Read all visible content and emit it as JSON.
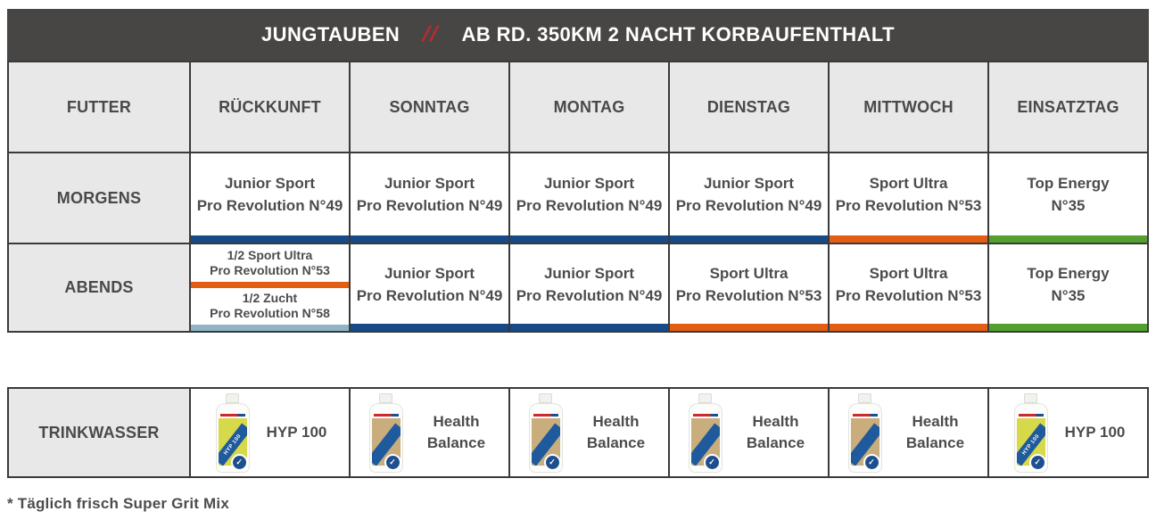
{
  "title_bar": {
    "left_label": "JUNGTAUBEN",
    "separator": "//",
    "right_label": "AB RD. 350KM 2 NACHT KORBAUFENTHALT",
    "background": "#474645",
    "separator_color": "#c1272d"
  },
  "colors": {
    "navy": "#164a88",
    "orange": "#e35d12",
    "green": "#53a02f",
    "steel_blue": "#8fb4c6",
    "header_gray": "#e9e8e8",
    "border_dark": "#3a3a3a"
  },
  "feed_table": {
    "corner_label": "FUTTER",
    "day_columns": [
      "RÜCKKUNFT",
      "SONNTAG",
      "MONTAG",
      "DIENSTAG",
      "MITTWOCH",
      "EINSATZTAG"
    ],
    "rows": [
      {
        "label": "MORGENS",
        "cells": [
          {
            "line1": "Junior Sport",
            "line2": "Pro Revolution N°49",
            "bar_color": "#164a88"
          },
          {
            "line1": "Junior Sport",
            "line2": "Pro Revolution N°49",
            "bar_color": "#164a88"
          },
          {
            "line1": "Junior Sport",
            "line2": "Pro Revolution N°49",
            "bar_color": "#164a88"
          },
          {
            "line1": "Junior Sport",
            "line2": "Pro Revolution N°49",
            "bar_color": "#164a88"
          },
          {
            "line1": "Sport Ultra",
            "line2": "Pro Revolution N°53",
            "bar_color": "#e35d12"
          },
          {
            "line1": "Top Energy",
            "line2": "N°35",
            "bar_color": "#53a02f"
          }
        ]
      },
      {
        "label": "ABENDS",
        "cells": [
          {
            "split": {
              "top": {
                "line1": "1/2 Sport Ultra",
                "line2": "Pro Revolution N°53",
                "bar_color": "#e35d12"
              },
              "bottom": {
                "line1": "1/2 Zucht",
                "line2": "Pro Revolution N°58",
                "bar_color": "#8fb4c6"
              }
            }
          },
          {
            "line1": "Junior Sport",
            "line2": "Pro Revolution N°49",
            "bar_color": "#164a88"
          },
          {
            "line1": "Junior Sport",
            "line2": "Pro Revolution N°49",
            "bar_color": "#164a88"
          },
          {
            "line1": "Sport Ultra",
            "line2": "Pro Revolution N°53",
            "bar_color": "#e35d12"
          },
          {
            "line1": "Sport Ultra",
            "line2": "Pro Revolution N°53",
            "bar_color": "#e35d12"
          },
          {
            "line1": "Top Energy",
            "line2": "N°35",
            "bar_color": "#53a02f"
          }
        ]
      }
    ]
  },
  "water_table": {
    "label": "TRINKWASSER",
    "cells": [
      {
        "product": "HYP 100",
        "bottle_text": "HYP 100",
        "label_color": "#d6d94a"
      },
      {
        "product": "Health Balance",
        "bottle_text": "",
        "label_color": "#c9ad7d"
      },
      {
        "product": "Health Balance",
        "bottle_text": "",
        "label_color": "#c9ad7d"
      },
      {
        "product": "Health Balance",
        "bottle_text": "",
        "label_color": "#c9ad7d"
      },
      {
        "product": "Health Balance",
        "bottle_text": "",
        "label_color": "#c9ad7d"
      },
      {
        "product": "HYP 100",
        "bottle_text": "HYP 100",
        "label_color": "#d6d94a"
      }
    ]
  },
  "icons": {
    "pigeon": "✓"
  },
  "footnote": "* Täglich frisch Super Grit Mix"
}
